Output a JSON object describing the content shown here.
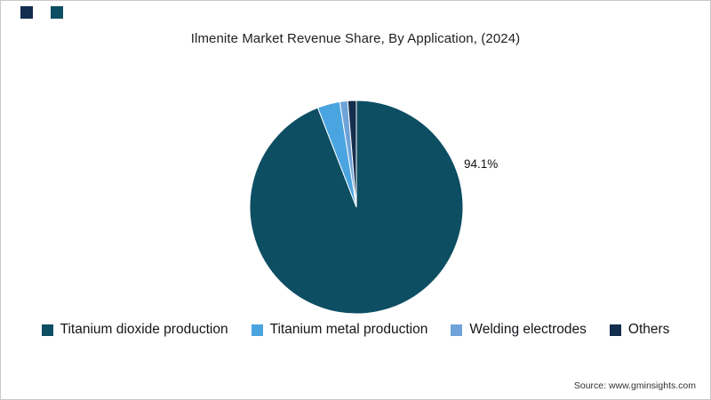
{
  "title": "Ilmenite Market Revenue Share, By Application, (2024)",
  "source_text": "Source: www.gminsights.com",
  "chart_data": {
    "type": "pie",
    "title": "Ilmenite Market Revenue Share, By Application, (2024)",
    "labels": [
      "Titanium dioxide production",
      "Titanium metal production",
      "Welding electrodes",
      "Others"
    ],
    "values": [
      94.1,
      3.4,
      1.2,
      1.3
    ],
    "colors": [
      "#0d4e63",
      "#4aa4e0",
      "#6fa3d8",
      "#132e4e"
    ],
    "data_labels": {
      "titanium_dioxide_production": "94.1%"
    },
    "legend_position": "bottom",
    "start_angle_deg": 0,
    "direction": "clockwise"
  },
  "decor": {
    "square1_color": "#132e4e",
    "square2_color": "#0d4e63"
  }
}
